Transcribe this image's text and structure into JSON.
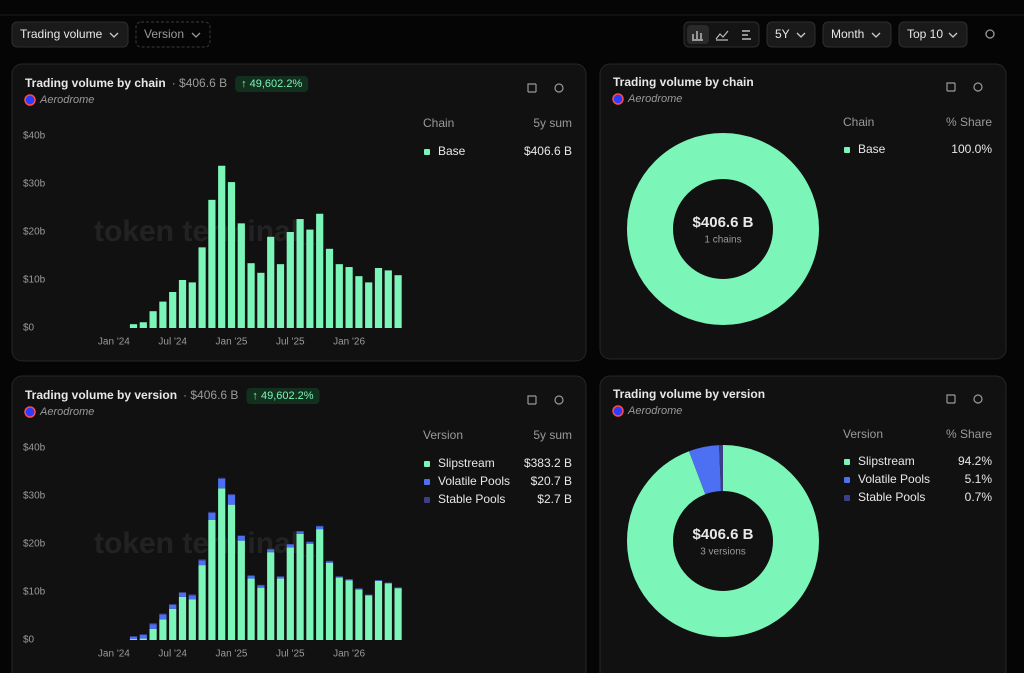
{
  "toolbar": {
    "metric": "Trading volume",
    "group": "Version",
    "range": "5Y",
    "granularity": "Month",
    "top": "Top 10"
  },
  "watermark": "token terminal_",
  "chart_data": [
    {
      "type": "bar",
      "title": "Trading volume by chain",
      "subtitle": "· $406.6 B",
      "change": "↑ 49,602.2%",
      "project": "Aerodrome",
      "legend_header": [
        "Chain",
        "5y sum"
      ],
      "categories": [
        "Jan '24",
        null,
        null,
        null,
        null,
        null,
        "Jul '24",
        null,
        null,
        null,
        null,
        null,
        "Jan '25",
        null,
        null,
        null,
        null,
        null,
        "Jul '25",
        null,
        null,
        null,
        null,
        null,
        "Jan '26",
        null,
        null,
        null,
        null,
        null
      ],
      "series": [
        {
          "name": "Base",
          "color": "#7cf5b8",
          "sum": "$406.6 B",
          "values": [
            0,
            0,
            0.8,
            1.2,
            3.5,
            5.5,
            7.5,
            10,
            9.5,
            16.8,
            26.7,
            33.8,
            30.4,
            21.8,
            13.5,
            11.5,
            19,
            13.3,
            20,
            22.7,
            20.5,
            23.8,
            16.5,
            13.3,
            12.7,
            10.8,
            9.5,
            12.5,
            12,
            11
          ]
        }
      ],
      "ylim": [
        0,
        40
      ],
      "yticks": [
        {
          "value": 0,
          "label": "$0"
        },
        {
          "value": 10,
          "label": "$10b"
        },
        {
          "value": 20,
          "label": "$20b"
        },
        {
          "value": 30,
          "label": "$30b"
        },
        {
          "value": 40,
          "label": "$40b"
        }
      ]
    },
    {
      "type": "pie",
      "donut": true,
      "title": "Trading volume by chain",
      "project": "Aerodrome",
      "legend_header": [
        "Chain",
        "% Share"
      ],
      "center_label": "$406.6 B",
      "center_sublabel": "1 chains",
      "categories": [
        "Base"
      ],
      "values": [
        100
      ],
      "value_labels": [
        "100.0%"
      ],
      "colors": [
        "#7cf5b8"
      ]
    },
    {
      "type": "bar",
      "stacked": true,
      "title": "Trading volume by version",
      "subtitle": "· $406.6 B",
      "change": "↑ 49,602.2%",
      "project": "Aerodrome",
      "legend_header": [
        "Version",
        "5y sum"
      ],
      "categories": [
        "Jan '24",
        null,
        null,
        null,
        null,
        null,
        "Jul '24",
        null,
        null,
        null,
        null,
        null,
        "Jan '25",
        null,
        null,
        null,
        null,
        null,
        "Jul '25",
        null,
        null,
        null,
        null,
        null,
        "Jan '26",
        null,
        null,
        null,
        null,
        null
      ],
      "series": [
        {
          "name": "Slipstream",
          "color": "#7cf5b8",
          "sum": "$383.2 B",
          "values": [
            0,
            0,
            0.2,
            0.3,
            2.3,
            4.3,
            6.5,
            9,
            8.5,
            15.6,
            25,
            31.6,
            28.2,
            20.7,
            12.8,
            10.9,
            18.3,
            12.8,
            19.3,
            22.1,
            20,
            23.1,
            16.1,
            13,
            12.4,
            10.5,
            9.3,
            12.3,
            11.8,
            10.8
          ]
        },
        {
          "name": "Volatile Pools",
          "color": "#4d6ff2",
          "sum": "$20.7 B",
          "values": [
            0,
            0,
            0.5,
            0.8,
            1.0,
            1.0,
            0.8,
            0.8,
            0.8,
            1.0,
            1.5,
            2.0,
            2.0,
            1.0,
            0.6,
            0.5,
            0.6,
            0.4,
            0.6,
            0.5,
            0.4,
            0.6,
            0.3,
            0.2,
            0.2,
            0.2,
            0.1,
            0.1,
            0.1,
            0.1
          ]
        },
        {
          "name": "Stable Pools",
          "color": "#3b3f86",
          "sum": "$2.7 B",
          "values": [
            0,
            0,
            0.1,
            0.1,
            0.2,
            0.2,
            0.2,
            0.2,
            0.2,
            0.2,
            0.2,
            0.2,
            0.2,
            0.1,
            0.1,
            0.1,
            0.1,
            0.1,
            0.1,
            0.1,
            0.1,
            0.1,
            0.1,
            0.1,
            0.1,
            0.1,
            0.1,
            0.1,
            0.1,
            0.1
          ]
        }
      ],
      "ylim": [
        0,
        40
      ],
      "yticks": [
        {
          "value": 0,
          "label": "$0"
        },
        {
          "value": 10,
          "label": "$10b"
        },
        {
          "value": 20,
          "label": "$20b"
        },
        {
          "value": 30,
          "label": "$30b"
        },
        {
          "value": 40,
          "label": "$40b"
        }
      ]
    },
    {
      "type": "pie",
      "donut": true,
      "title": "Trading volume by version",
      "project": "Aerodrome",
      "legend_header": [
        "Version",
        "% Share"
      ],
      "center_label": "$406.6 B",
      "center_sublabel": "3 versions",
      "categories": [
        "Slipstream",
        "Volatile Pools",
        "Stable Pools"
      ],
      "values": [
        94.2,
        5.1,
        0.7
      ],
      "value_labels": [
        "94.2%",
        "5.1%",
        "0.7%"
      ],
      "colors": [
        "#7cf5b8",
        "#4d6ff2",
        "#3b3f86"
      ]
    }
  ]
}
